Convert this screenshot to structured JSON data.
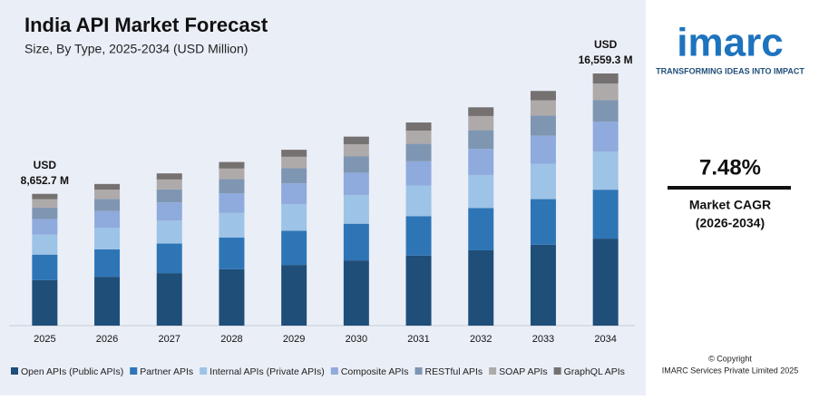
{
  "chart_data": {
    "type": "stacked-bar",
    "title": "India API Market Forecast",
    "subtitle": "Size, By Type, 2025-2034 (USD Million)",
    "categories": [
      "2025",
      "2026",
      "2027",
      "2028",
      "2029",
      "2030",
      "2031",
      "2032",
      "2033",
      "2034"
    ],
    "series": [
      {
        "name": "Open APIs (Public APIs)",
        "color": "#1f4e79",
        "values": [
          2985,
          3209,
          3449,
          3707,
          3984,
          4282,
          4602,
          4946,
          5316,
          5713
        ]
      },
      {
        "name": "Partner APIs",
        "color": "#2e75b6",
        "values": [
          1679,
          1804,
          1939,
          2084,
          2240,
          2408,
          2588,
          2781,
          2990,
          3212
        ]
      },
      {
        "name": "Internal APIs (Private APIs)",
        "color": "#9dc3e6",
        "values": [
          1307,
          1404,
          1509,
          1622,
          1744,
          1874,
          2014,
          2165,
          2327,
          2500
        ]
      },
      {
        "name": "Composite APIs",
        "color": "#8faadc",
        "values": [
          1030,
          1107,
          1190,
          1279,
          1374,
          1477,
          1587,
          1706,
          1834,
          1971
        ]
      },
      {
        "name": "RESTful APIs",
        "color": "#7f96b2",
        "values": [
          744,
          800,
          860,
          924,
          993,
          1067,
          1147,
          1233,
          1325,
          1424
        ]
      },
      {
        "name": "SOAP APIs",
        "color": "#aeaaaa",
        "values": [
          562,
          605,
          650,
          698,
          751,
          807,
          867,
          932,
          1002,
          1076
        ]
      },
      {
        "name": "GraphQL APIs",
        "color": "#767171",
        "values": [
          346,
          372,
          400,
          430,
          462,
          496,
          534,
          573,
          616,
          662
        ]
      }
    ],
    "annotations": [
      {
        "category": "2025",
        "unit": "USD",
        "text": "8,652.7 M"
      },
      {
        "category": "2034",
        "unit": "USD",
        "text": "16,559.3 M"
      }
    ],
    "legend": "bottom"
  },
  "panel": {
    "logo": "imarc",
    "tagline": "TRANSFORMING IDEAS INTO IMPACT",
    "cagr": "7.48%",
    "cagr_label": "Market CAGR",
    "cagr_period": "(2026-2034)",
    "copyright": "© Copyright",
    "owner": "IMARC Services Private Limited 2025"
  }
}
